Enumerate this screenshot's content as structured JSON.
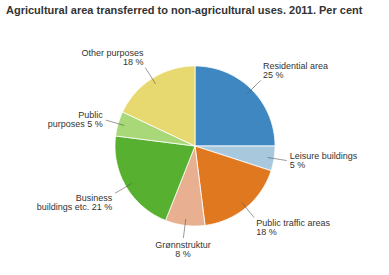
{
  "chart_data": {
    "type": "pie",
    "title": "Agricultural area transferred to non-agricultural uses. 2011. Per cent",
    "categories": [
      "Residential area\n25 %",
      "Leisure buildings\n5 %",
      "Public traffic areas\n18 %",
      "Grønnstruktur\n8 %",
      "Business\nbuildings etc. 21 %",
      "Public\npurposes 5 %",
      "Other purposes\n18 %"
    ],
    "values": [
      25,
      5,
      18,
      8,
      21,
      5,
      18
    ],
    "colors": [
      "#3e87c0",
      "#a8c8dd",
      "#e07820",
      "#e8b090",
      "#58b030",
      "#a8d878",
      "#e8d870"
    ]
  }
}
